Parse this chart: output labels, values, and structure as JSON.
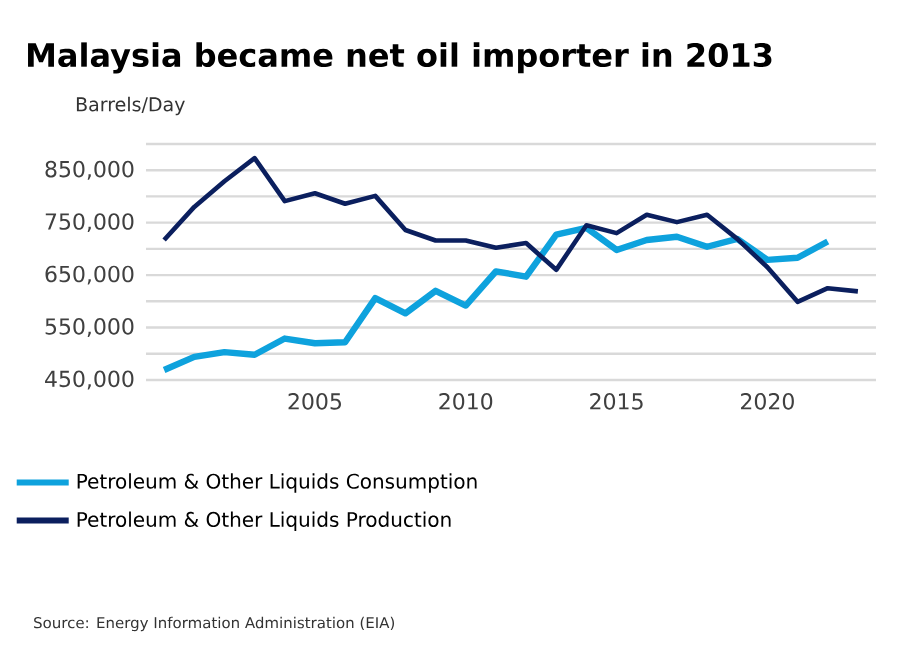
{
  "chart_data": {
    "type": "line",
    "title": "Malaysia became net oil importer in 2013",
    "ylabel": "Barrels/Day",
    "x": [
      2000,
      2001,
      2002,
      2003,
      2004,
      2005,
      2006,
      2007,
      2008,
      2009,
      2010,
      2011,
      2012,
      2013,
      2014,
      2015,
      2016,
      2017,
      2018,
      2019,
      2020,
      2021,
      2022,
      2023
    ],
    "series": [
      {
        "name": "Petroleum & Other Liquids Consumption",
        "color": "#0ea2dd",
        "values": [
          469000,
          494000,
          503000,
          498000,
          529000,
          520000,
          522000,
          606000,
          577000,
          620000,
          592000,
          657000,
          647000,
          727000,
          740000,
          698000,
          717000,
          723000,
          704000,
          719000,
          679000,
          683000,
          714000,
          null
        ]
      },
      {
        "name": "Petroleum & Other Liquids Production",
        "color": "#0b1f5e",
        "values": [
          717000,
          780000,
          829000,
          873000,
          791000,
          806000,
          786000,
          801000,
          736000,
          716000,
          716000,
          702000,
          711000,
          660000,
          745000,
          730000,
          765000,
          751000,
          765000,
          719000,
          665000,
          599000,
          625000,
          619000
        ]
      }
    ],
    "xlim": [
      1999.4,
      2023.6
    ],
    "xticks": [
      2005,
      2010,
      2015,
      2020
    ],
    "ylim": [
      450000,
      900000
    ],
    "yticks": [
      {
        "value": 450000,
        "label": "450,000"
      },
      {
        "value": 500000,
        "label": null
      },
      {
        "value": 550000,
        "label": "550,000"
      },
      {
        "value": 600000,
        "label": null
      },
      {
        "value": 650000,
        "label": "650,000"
      },
      {
        "value": 700000,
        "label": null
      },
      {
        "value": 750000,
        "label": "750,000"
      },
      {
        "value": 800000,
        "label": null
      },
      {
        "value": 850000,
        "label": "850,000"
      },
      {
        "value": 900000,
        "label": null
      }
    ],
    "grid": "y",
    "legend": "bottom",
    "marker": "none",
    "line_style": "solid",
    "annotations": [
      "Source: Energy Information Administration (EIA)"
    ]
  }
}
